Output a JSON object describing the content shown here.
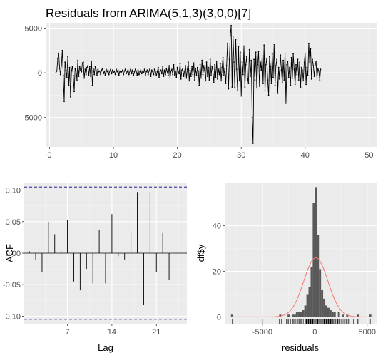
{
  "title": "Residuals from ARIMA(5,1,3)(3,0,0)[7]",
  "colors": {
    "panel_bg": "#ebebeb",
    "grid_major": "#ffffff",
    "grid_minor": "#f3f3f3",
    "line": "#000000",
    "ci_line": "#00008b",
    "hist_fill": "#595959",
    "density": "#f8766d",
    "axis_text": "#4d4d4d",
    "axis_title": "#000000"
  },
  "chart_data": [
    {
      "type": "line",
      "id": "residual-series",
      "title": "Residuals from ARIMA(5,1,3)(3,0,0)[7]",
      "xlabel": "",
      "ylabel": "",
      "xlim": [
        -0.5,
        51.3
      ],
      "ylim": [
        -8300,
        5600
      ],
      "x_ticks": [
        0,
        10,
        20,
        30,
        40,
        50
      ],
      "y_ticks": [
        -5000,
        0,
        5000
      ],
      "grid": true,
      "x_start": 1.0,
      "x_step": 0.142857,
      "values": [
        0,
        200,
        1600,
        2200,
        500,
        -200,
        800,
        2500,
        -300,
        -3200,
        1200,
        300,
        -500,
        1800,
        -1400,
        600,
        -2700,
        200,
        700,
        -300,
        -2100,
        500,
        200,
        -800,
        1400,
        -400,
        700,
        300,
        100,
        1100,
        1200,
        -600,
        400,
        -200,
        600,
        800,
        -300,
        700,
        -400,
        1300,
        -1400,
        500,
        -200,
        700,
        300,
        -300,
        400,
        100,
        200,
        -200,
        300,
        500,
        -100,
        200,
        -300,
        400,
        100,
        300,
        -200,
        200,
        400,
        -100,
        300,
        0,
        200,
        -200,
        400,
        100,
        300,
        -300,
        200,
        0,
        100,
        300,
        -200,
        200,
        400,
        -100,
        100,
        300,
        -200,
        200,
        500,
        -100,
        300,
        -300,
        100,
        400,
        200,
        -300,
        300,
        -200,
        100,
        300,
        -100,
        200,
        0,
        400,
        -300,
        100,
        300,
        -200,
        200,
        500,
        -400,
        300,
        100,
        -200,
        400,
        200,
        -300,
        100,
        600,
        -500,
        200,
        300,
        -100,
        700,
        -400,
        300,
        -200,
        500,
        100,
        -300,
        800,
        -600,
        200,
        400,
        -200,
        900,
        -300,
        200,
        -500,
        600,
        200,
        -100,
        1000,
        -700,
        300,
        500,
        -400,
        200,
        800,
        -600,
        400,
        1200,
        -900,
        300,
        -400,
        700,
        -200,
        1100,
        -800,
        500,
        -300,
        600,
        200,
        -1400,
        900,
        -600,
        1400,
        -200,
        800,
        300,
        -900,
        1200,
        -400,
        600,
        -800,
        1500,
        -300,
        700,
        200,
        -1100,
        900,
        -500,
        1300,
        -700,
        400,
        -200,
        1000,
        -900,
        600,
        1700,
        -300,
        500,
        -1200,
        800,
        3300,
        -1800,
        1500,
        4200,
        5300,
        -1600,
        4100,
        1200,
        -1600,
        3700,
        400,
        -2000,
        2900,
        -900,
        2300,
        -2600,
        1200,
        -200,
        3000,
        -1600,
        900,
        1800,
        -700,
        -1200,
        2600,
        -400,
        1400,
        -5000,
        -7900,
        1500,
        -800,
        2300,
        -1700,
        900,
        2400,
        -1500,
        1200,
        300,
        1900,
        -1200,
        3100,
        -2000,
        900,
        1600,
        -800,
        -2500,
        1800,
        700,
        -1200,
        2100,
        -500,
        3200,
        -1400,
        800,
        1500,
        -2300,
        600,
        -700,
        2000,
        300,
        -1100,
        1400,
        -800,
        2200,
        -3400,
        900,
        1300,
        -500,
        600,
        -1400,
        1700,
        -600,
        2100,
        400,
        -1300,
        900,
        -200,
        1500,
        -800,
        1200,
        -1600,
        600,
        300,
        -900,
        1100,
        2200,
        -1300,
        600,
        -300,
        3300,
        1200,
        2700,
        -700,
        1500,
        800,
        -400,
        900,
        1300,
        -600,
        500,
        200,
        -800,
        400
      ]
    },
    {
      "type": "bar",
      "id": "acf",
      "title": "",
      "xlabel": "Lag",
      "ylabel": "ACF",
      "xlim": [
        0.2,
        25.8
      ],
      "ylim": [
        -0.112,
        0.112
      ],
      "x_ticks": [
        7,
        14,
        21
      ],
      "y_ticks": [
        -0.1,
        -0.05,
        0.0,
        0.05,
        0.1
      ],
      "y_tick_labels": [
        "-0.10",
        "-0.05",
        "0.00",
        "0.05",
        "0.10"
      ],
      "ci": [
        -0.105,
        0.105
      ],
      "lags": [
        1,
        2,
        3,
        4,
        5,
        6,
        7,
        8,
        9,
        10,
        11,
        12,
        13,
        14,
        15,
        16,
        17,
        18,
        19,
        20,
        21,
        22,
        23,
        24,
        25
      ],
      "values": [
        0.003,
        -0.01,
        -0.03,
        0.05,
        0.03,
        0.004,
        0.053,
        -0.045,
        -0.059,
        -0.025,
        -0.048,
        0.037,
        -0.048,
        0.062,
        -0.005,
        -0.01,
        0.032,
        0.097,
        -0.082,
        0.097,
        -0.03,
        0.032,
        -0.042,
        0.0,
        0.0
      ],
      "grid": true
    },
    {
      "type": "bar",
      "id": "residual-histogram",
      "title": "",
      "xlabel": "residuals",
      "ylabel": "df$y",
      "xlim": [
        -8600,
        5900
      ],
      "ylim": [
        -3,
        59
      ],
      "x_ticks": [
        -5000,
        0,
        5000
      ],
      "x_tick_labels": [
        "-5000",
        "0",
        "5000"
      ],
      "y_ticks": [
        0,
        20,
        40
      ],
      "bin_width": 200,
      "bins": [
        {
          "x": -7900,
          "count": 1
        },
        {
          "x": -3300,
          "count": 1
        },
        {
          "x": -2500,
          "count": 1
        },
        {
          "x": -2100,
          "count": 1
        },
        {
          "x": -1900,
          "count": 1
        },
        {
          "x": -1700,
          "count": 2
        },
        {
          "x": -1500,
          "count": 2
        },
        {
          "x": -1300,
          "count": 2
        },
        {
          "x": -1100,
          "count": 3
        },
        {
          "x": -900,
          "count": 5
        },
        {
          "x": -700,
          "count": 10
        },
        {
          "x": -500,
          "count": 13
        },
        {
          "x": -300,
          "count": 22
        },
        {
          "x": -100,
          "count": 50
        },
        {
          "x": 100,
          "count": 57
        },
        {
          "x": 300,
          "count": 36
        },
        {
          "x": 500,
          "count": 21
        },
        {
          "x": 700,
          "count": 12
        },
        {
          "x": 900,
          "count": 8
        },
        {
          "x": 1100,
          "count": 5
        },
        {
          "x": 1300,
          "count": 4
        },
        {
          "x": 1500,
          "count": 3
        },
        {
          "x": 1700,
          "count": 2
        },
        {
          "x": 1900,
          "count": 2
        },
        {
          "x": 2300,
          "count": 2
        },
        {
          "x": 2700,
          "count": 1
        },
        {
          "x": 3100,
          "count": 1
        },
        {
          "x": 4100,
          "count": 1
        },
        {
          "x": 5300,
          "count": 1
        }
      ],
      "density": {
        "mean": 100,
        "sd": 1150,
        "peak": 26
      },
      "grid": true
    }
  ]
}
